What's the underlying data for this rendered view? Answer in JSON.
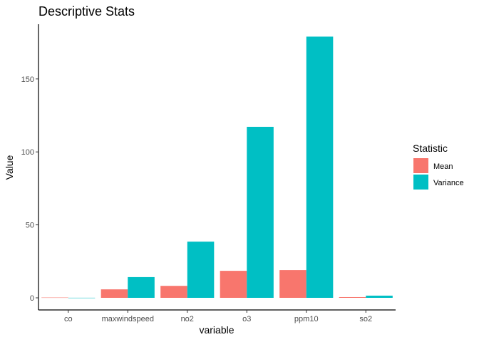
{
  "chart_data": {
    "type": "bar",
    "title": "Descriptive Stats",
    "xlabel": "variable",
    "ylabel": "Value",
    "categories": [
      "co",
      "maxwindspeed",
      "no2",
      "o3",
      "ppm10",
      "so2"
    ],
    "series": [
      {
        "name": "Mean",
        "color": "#F8766D",
        "values": [
          0.2,
          5.8,
          8.2,
          18.5,
          19.0,
          0.5
        ]
      },
      {
        "name": "Variance",
        "color": "#00BFC4",
        "values": [
          0.05,
          14.2,
          38.5,
          117.2,
          179.0,
          1.5
        ]
      }
    ],
    "ylim": [
      -8.3,
      187.5
    ],
    "yticks": [
      0,
      50,
      100,
      150
    ],
    "legend": {
      "title": "Statistic",
      "position": "right"
    },
    "grid": false
  }
}
